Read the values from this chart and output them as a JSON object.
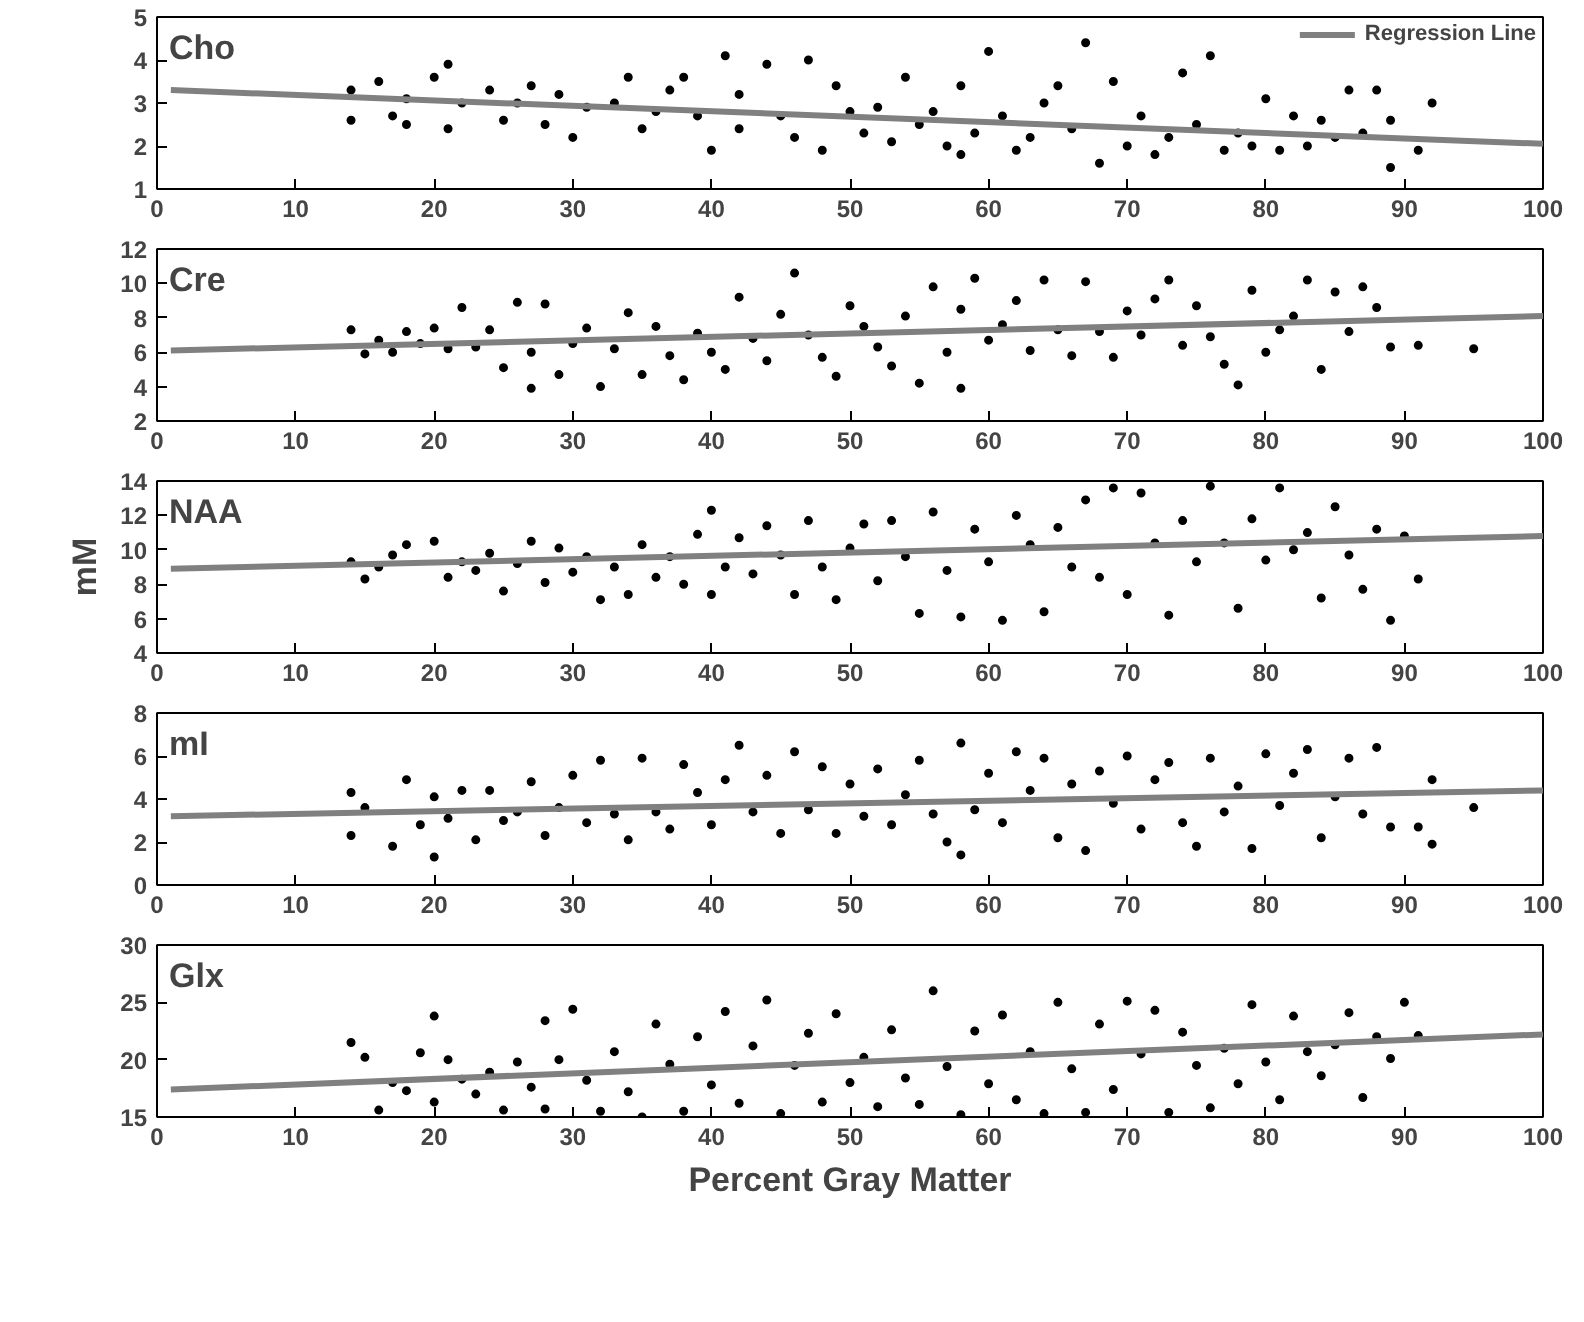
{
  "chart_data": [
    {
      "type": "scatter",
      "title": "Cho",
      "xlim": [
        0,
        100
      ],
      "xticks": [
        0,
        10,
        20,
        30,
        40,
        50,
        60,
        70,
        80,
        90,
        100
      ],
      "ylim": [
        1,
        5
      ],
      "yticks": [
        1,
        2,
        3,
        4,
        5
      ],
      "grid": false,
      "legend": "top right",
      "series": [
        {
          "marker": "circle",
          "color": "#000000",
          "x": [
            14,
            14,
            16,
            17,
            18,
            18,
            20,
            21,
            21,
            22,
            24,
            25,
            26,
            27,
            28,
            29,
            30,
            31,
            33,
            34,
            35,
            36,
            37,
            38,
            39,
            40,
            41,
            42,
            42,
            44,
            45,
            46,
            47,
            48,
            49,
            50,
            51,
            52,
            53,
            54,
            55,
            56,
            57,
            58,
            58,
            59,
            60,
            61,
            62,
            63,
            64,
            65,
            66,
            67,
            68,
            69,
            70,
            71,
            72,
            73,
            74,
            75,
            76,
            77,
            78,
            79,
            80,
            81,
            82,
            83,
            84,
            85,
            86,
            87,
            88,
            89,
            89,
            91,
            92
          ],
          "values": [
            3.3,
            2.6,
            3.5,
            2.7,
            3.1,
            2.5,
            3.6,
            3.9,
            2.4,
            3.0,
            3.3,
            2.6,
            3.0,
            3.4,
            2.5,
            3.2,
            2.2,
            2.9,
            3.0,
            3.6,
            2.4,
            2.8,
            3.3,
            3.6,
            2.7,
            1.9,
            4.1,
            3.2,
            2.4,
            3.9,
            2.7,
            2.2,
            4.0,
            1.9,
            3.4,
            2.8,
            2.3,
            2.9,
            2.1,
            3.6,
            2.5,
            2.8,
            2.0,
            3.4,
            1.8,
            2.3,
            4.2,
            2.7,
            1.9,
            2.2,
            3.0,
            3.4,
            2.4,
            4.4,
            1.6,
            3.5,
            2.0,
            2.7,
            1.8,
            2.2,
            3.7,
            2.5,
            4.1,
            1.9,
            2.3,
            2.0,
            3.1,
            1.9,
            2.7,
            2.0,
            2.6,
            2.2,
            3.3,
            2.3,
            3.3,
            1.5,
            2.6,
            1.9,
            3.0
          ]
        },
        {
          "type": "line",
          "name": "Regression Line",
          "color": "#808080",
          "x": [
            1,
            100
          ],
          "values": [
            3.3,
            2.05
          ]
        }
      ]
    },
    {
      "type": "scatter",
      "title": "Cre",
      "xlim": [
        0,
        100
      ],
      "xticks": [
        0,
        10,
        20,
        30,
        40,
        50,
        60,
        70,
        80,
        90,
        100
      ],
      "ylim": [
        2,
        12
      ],
      "yticks": [
        2,
        4,
        6,
        8,
        10,
        12
      ],
      "grid": false,
      "series": [
        {
          "marker": "circle",
          "color": "#000000",
          "x": [
            14,
            15,
            16,
            17,
            18,
            19,
            20,
            21,
            22,
            23,
            24,
            25,
            26,
            27,
            27,
            28,
            29,
            30,
            31,
            32,
            33,
            34,
            35,
            36,
            37,
            38,
            39,
            40,
            41,
            42,
            43,
            44,
            45,
            46,
            47,
            48,
            49,
            50,
            51,
            52,
            53,
            54,
            55,
            56,
            57,
            58,
            58,
            59,
            60,
            61,
            62,
            63,
            64,
            65,
            66,
            67,
            68,
            69,
            70,
            71,
            72,
            73,
            74,
            75,
            76,
            77,
            78,
            79,
            80,
            81,
            82,
            83,
            84,
            85,
            86,
            87,
            88,
            89,
            91,
            95
          ],
          "values": [
            7.3,
            5.9,
            6.7,
            6.0,
            7.2,
            6.5,
            7.4,
            6.2,
            8.6,
            6.3,
            7.3,
            5.1,
            8.9,
            3.9,
            6.0,
            8.8,
            4.7,
            6.5,
            7.4,
            4.0,
            6.2,
            8.3,
            4.7,
            7.5,
            5.8,
            4.4,
            7.1,
            6.0,
            5.0,
            9.2,
            6.8,
            5.5,
            8.2,
            10.6,
            7.0,
            5.7,
            4.6,
            8.7,
            7.5,
            6.3,
            5.2,
            8.1,
            4.2,
            9.8,
            6.0,
            3.9,
            8.5,
            10.3,
            6.7,
            7.6,
            9.0,
            6.1,
            10.2,
            7.3,
            5.8,
            10.1,
            7.2,
            5.7,
            8.4,
            7.0,
            9.1,
            10.2,
            6.4,
            8.7,
            6.9,
            5.3,
            4.1,
            9.6,
            6.0,
            7.3,
            8.1,
            10.2,
            5.0,
            9.5,
            7.2,
            9.8,
            8.6,
            6.3,
            6.4,
            6.2
          ]
        },
        {
          "type": "line",
          "color": "#808080",
          "x": [
            1,
            100
          ],
          "values": [
            6.1,
            8.1
          ]
        }
      ]
    },
    {
      "type": "scatter",
      "title": "NAA",
      "ylabel": "mM",
      "xlim": [
        0,
        100
      ],
      "xticks": [
        0,
        10,
        20,
        30,
        40,
        50,
        60,
        70,
        80,
        90,
        100
      ],
      "ylim": [
        4,
        14
      ],
      "yticks": [
        4,
        6,
        8,
        10,
        12,
        14
      ],
      "grid": false,
      "series": [
        {
          "marker": "circle",
          "color": "#000000",
          "x": [
            14,
            15,
            16,
            17,
            18,
            20,
            21,
            22,
            23,
            24,
            25,
            26,
            27,
            28,
            29,
            30,
            31,
            32,
            33,
            34,
            35,
            36,
            37,
            38,
            39,
            40,
            40,
            41,
            42,
            43,
            44,
            45,
            46,
            47,
            48,
            49,
            50,
            51,
            52,
            53,
            54,
            55,
            56,
            57,
            58,
            59,
            60,
            61,
            62,
            63,
            64,
            65,
            66,
            67,
            68,
            69,
            70,
            71,
            72,
            73,
            74,
            75,
            76,
            77,
            78,
            79,
            80,
            81,
            82,
            83,
            84,
            85,
            86,
            87,
            88,
            89,
            90,
            91
          ],
          "values": [
            9.3,
            8.3,
            9.0,
            9.7,
            10.3,
            10.5,
            8.4,
            9.3,
            8.8,
            9.8,
            7.6,
            9.2,
            10.5,
            8.1,
            10.1,
            8.7,
            9.6,
            7.1,
            9.0,
            7.4,
            10.3,
            8.4,
            9.6,
            8.0,
            10.9,
            12.3,
            7.4,
            9.0,
            10.7,
            8.6,
            11.4,
            9.7,
            7.4,
            11.7,
            9.0,
            7.1,
            10.1,
            11.5,
            8.2,
            11.7,
            9.6,
            6.3,
            12.2,
            8.8,
            6.1,
            11.2,
            9.3,
            5.9,
            12.0,
            10.3,
            6.4,
            11.3,
            9.0,
            12.9,
            8.4,
            13.6,
            7.4,
            13.3,
            10.4,
            6.2,
            11.7,
            9.3,
            13.7,
            10.4,
            6.6,
            11.8,
            9.4,
            13.6,
            10.0,
            11.0,
            7.2,
            12.5,
            9.7,
            7.7,
            11.2,
            5.9,
            10.8,
            8.3
          ]
        },
        {
          "type": "line",
          "color": "#808080",
          "x": [
            1,
            100
          ],
          "values": [
            8.9,
            10.8
          ]
        }
      ]
    },
    {
      "type": "scatter",
      "title": "mI",
      "xlim": [
        0,
        100
      ],
      "xticks": [
        0,
        10,
        20,
        30,
        40,
        50,
        60,
        70,
        80,
        90,
        100
      ],
      "ylim": [
        0,
        8
      ],
      "yticks": [
        0,
        2,
        4,
        6,
        8
      ],
      "grid": false,
      "series": [
        {
          "marker": "circle",
          "color": "#000000",
          "x": [
            14,
            14,
            15,
            17,
            18,
            19,
            20,
            20,
            21,
            22,
            23,
            24,
            25,
            26,
            27,
            28,
            29,
            30,
            31,
            32,
            33,
            34,
            35,
            36,
            37,
            38,
            39,
            40,
            41,
            42,
            43,
            44,
            45,
            46,
            47,
            48,
            49,
            50,
            51,
            52,
            53,
            54,
            55,
            56,
            57,
            58,
            58,
            59,
            60,
            61,
            62,
            63,
            64,
            65,
            66,
            67,
            68,
            69,
            70,
            71,
            72,
            73,
            74,
            75,
            76,
            77,
            78,
            79,
            80,
            81,
            82,
            83,
            84,
            85,
            86,
            87,
            88,
            89,
            91,
            92,
            92,
            95
          ],
          "values": [
            2.3,
            4.3,
            3.6,
            1.8,
            4.9,
            2.8,
            1.3,
            4.1,
            3.1,
            4.4,
            2.1,
            4.4,
            3.0,
            3.4,
            4.8,
            2.3,
            3.6,
            5.1,
            2.9,
            5.8,
            3.3,
            2.1,
            5.9,
            3.4,
            2.6,
            5.6,
            4.3,
            2.8,
            4.9,
            6.5,
            3.4,
            5.1,
            2.4,
            6.2,
            3.5,
            5.5,
            2.4,
            4.7,
            3.2,
            5.4,
            2.8,
            4.2,
            5.8,
            3.3,
            2.0,
            6.6,
            1.4,
            3.5,
            5.2,
            2.9,
            6.2,
            4.4,
            5.9,
            2.2,
            4.7,
            1.6,
            5.3,
            3.8,
            6.0,
            2.6,
            4.9,
            5.7,
            2.9,
            1.8,
            5.9,
            3.4,
            4.6,
            1.7,
            6.1,
            3.7,
            5.2,
            6.3,
            2.2,
            4.1,
            5.9,
            3.3,
            6.4,
            2.7,
            2.7,
            4.9,
            1.9,
            3.6
          ]
        },
        {
          "type": "line",
          "color": "#808080",
          "x": [
            1,
            100
          ],
          "values": [
            3.2,
            4.4
          ]
        }
      ]
    },
    {
      "type": "scatter",
      "title": "Glx",
      "xlabel": "Percent Gray Matter",
      "xlim": [
        0,
        100
      ],
      "xticks": [
        0,
        10,
        20,
        30,
        40,
        50,
        60,
        70,
        80,
        90,
        100
      ],
      "ylim": [
        15,
        30
      ],
      "yticks": [
        15,
        20,
        25,
        30
      ],
      "grid": false,
      "series": [
        {
          "marker": "circle",
          "color": "#000000",
          "x": [
            14,
            15,
            16,
            17,
            18,
            19,
            20,
            20,
            21,
            22,
            23,
            24,
            25,
            26,
            27,
            28,
            28,
            29,
            30,
            31,
            32,
            33,
            34,
            35,
            36,
            37,
            38,
            39,
            40,
            41,
            42,
            43,
            44,
            45,
            46,
            47,
            48,
            49,
            50,
            51,
            52,
            53,
            54,
            55,
            56,
            57,
            58,
            59,
            60,
            61,
            62,
            63,
            64,
            65,
            66,
            67,
            68,
            69,
            70,
            71,
            72,
            73,
            74,
            75,
            76,
            77,
            78,
            79,
            80,
            81,
            82,
            83,
            84,
            85,
            86,
            87,
            88,
            89,
            90,
            91
          ],
          "values": [
            21.5,
            20.2,
            15.6,
            18.0,
            17.3,
            20.6,
            16.3,
            23.8,
            20.0,
            18.3,
            17.0,
            18.9,
            15.6,
            19.8,
            17.6,
            15.7,
            23.4,
            20.0,
            24.4,
            18.2,
            15.5,
            20.7,
            17.2,
            15.0,
            23.1,
            19.6,
            15.5,
            22.0,
            17.8,
            24.2,
            16.2,
            21.2,
            25.2,
            15.3,
            19.5,
            22.3,
            16.3,
            24.0,
            18.0,
            20.2,
            15.9,
            22.6,
            18.4,
            16.1,
            26.0,
            19.4,
            15.2,
            22.5,
            17.9,
            23.9,
            16.5,
            20.7,
            15.3,
            25.0,
            19.2,
            15.4,
            23.1,
            17.4,
            25.1,
            20.5,
            24.3,
            15.4,
            22.4,
            19.5,
            15.8,
            21.0,
            17.9,
            24.8,
            19.8,
            16.5,
            23.8,
            20.7,
            18.6,
            21.3,
            24.1,
            16.7,
            22.0,
            20.1,
            25.0,
            22.1
          ]
        },
        {
          "type": "line",
          "color": "#808080",
          "x": [
            1,
            100
          ],
          "values": [
            17.4,
            22.2
          ]
        }
      ]
    }
  ]
}
